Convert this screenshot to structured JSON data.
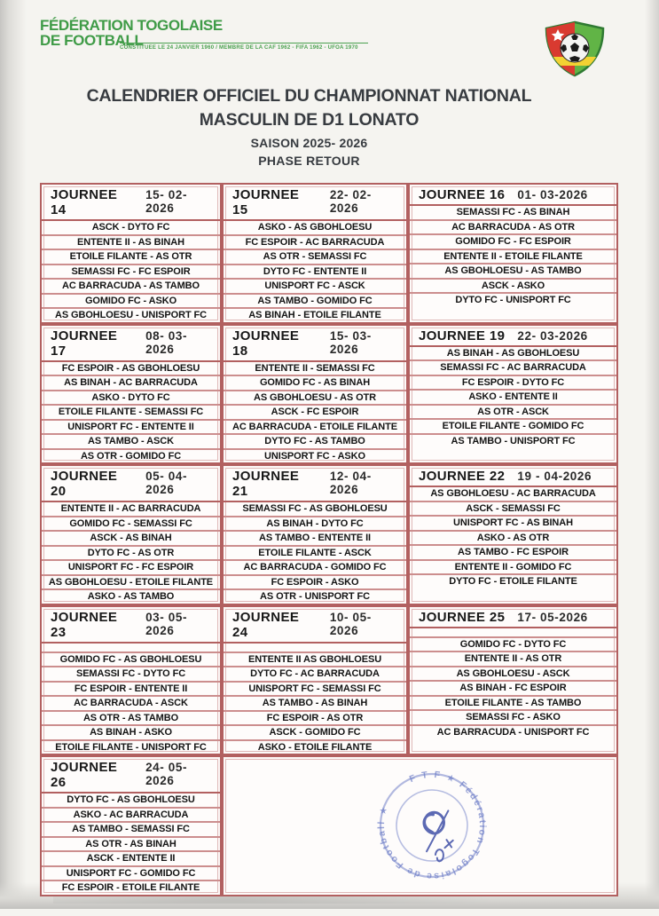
{
  "letterhead": {
    "org_line1": "FÉDÉRATION TOGOLAISE",
    "org_line2": "DE FOOTBALL",
    "org_subtitle": "CONSTITUEE LE 24 JANVIER 1960 / MEMBRE DE LA CAF 1962 - FIFA 1962 - UFOA 1970"
  },
  "title": {
    "line1": "CALENDRIER OFFICIEL DU CHAMPIONNAT NATIONAL",
    "line2": "MASCULIN DE D1 LONATO",
    "line3": "SAISON 2025- 2026",
    "line4": "PHASE RETOUR"
  },
  "rounds": [
    {
      "name": "JOURNEE 14",
      "date": "15- 02-2026",
      "header_gap": false,
      "matches": [
        "ASCK - DYTO FC",
        "ENTENTE II - AS BINAH",
        "ETOILE FILANTE - AS OTR",
        "SEMASSI FC - FC ESPOIR",
        "AC BARRACUDA - AS TAMBO",
        "GOMIDO FC - ASKO",
        "AS GBOHLOESU - UNISPORT FC"
      ]
    },
    {
      "name": "JOURNEE 15",
      "date": "22- 02-2026",
      "header_gap": false,
      "matches": [
        "ASKO - AS GBOHLOESU",
        "FC ESPOIR - AC BARRACUDA",
        "AS OTR - SEMASSI FC",
        "DYTO FC - ENTENTE II",
        "UNISPORT FC - ASCK",
        "AS TAMBO - GOMIDO FC",
        "AS BINAH - ETOILE FILANTE"
      ]
    },
    {
      "name": "JOURNEE 16",
      "date": "01- 03-2026",
      "header_gap": false,
      "matches": [
        "SEMASSI FC - AS BINAH",
        "AC BARRACUDA - AS OTR",
        "GOMIDO FC - FC ESPOIR",
        "ENTENTE II - ETOILE FILANTE",
        "AS GBOHLOESU - AS TAMBO",
        "ASCK - ASKO",
        "DYTO FC - UNISPORT FC"
      ]
    },
    {
      "name": "JOURNEE 17",
      "date": "08- 03-2026",
      "header_gap": false,
      "matches": [
        "FC ESPOIR - AS GBOHLOESU",
        "AS BINAH - AC BARRACUDA",
        "ASKO - DYTO FC",
        "ETOILE FILANTE - SEMASSI FC",
        "UNISPORT FC - ENTENTE II",
        "AS TAMBO - ASCK",
        "AS OTR - GOMIDO FC"
      ]
    },
    {
      "name": "JOURNEE 18",
      "date": "15- 03-2026",
      "header_gap": false,
      "matches": [
        "ENTENTE II - SEMASSI FC",
        "GOMIDO FC - AS BINAH",
        "AS GBOHLOESU - AS OTR",
        "ASCK - FC ESPOIR",
        "AC BARRACUDA - ETOILE FILANTE",
        "DYTO FC - AS TAMBO",
        "UNISPORT FC - ASKO"
      ]
    },
    {
      "name": "JOURNEE 19",
      "date": "22- 03-2026",
      "header_gap": false,
      "matches": [
        "AS BINAH - AS GBOHLOESU",
        "SEMASSI FC - AC BARRACUDA",
        "FC ESPOIR - DYTO FC",
        "ASKO - ENTENTE II",
        "AS OTR - ASCK",
        "ETOILE FILANTE - GOMIDO FC",
        "AS TAMBO - UNISPORT FC"
      ]
    },
    {
      "name": "JOURNEE 20",
      "date": "05- 04-2026",
      "header_gap": false,
      "matches": [
        "ENTENTE II - AC BARRACUDA",
        "GOMIDO FC - SEMASSI FC",
        "ASCK - AS BINAH",
        "DYTO FC - AS OTR",
        "UNISPORT FC - FC ESPOIR",
        "AS GBOHLOESU - ETOILE FILANTE",
        "ASKO - AS TAMBO"
      ]
    },
    {
      "name": "JOURNEE 21",
      "date": "12- 04-2026",
      "header_gap": false,
      "matches": [
        "SEMASSI FC - AS GBOHLOESU",
        "AS BINAH - DYTO FC",
        "AS TAMBO - ENTENTE II",
        "ETOILE FILANTE - ASCK",
        "AC BARRACUDA - GOMIDO FC",
        "FC ESPOIR - ASKO",
        "AS OTR - UNISPORT FC"
      ]
    },
    {
      "name": "JOURNEE 22",
      "date": "19 - 04-2026",
      "header_gap": false,
      "matches": [
        "AS GBOHLOESU - AC BARRACUDA",
        "ASCK - SEMASSI FC",
        "UNISPORT FC - AS BINAH",
        "ASKO - AS OTR",
        "AS TAMBO - FC ESPOIR",
        "ENTENTE II - GOMIDO FC",
        "DYTO FC - ETOILE FILANTE"
      ]
    },
    {
      "name": "JOURNEE 23",
      "date": "03- 05-2026",
      "header_gap": true,
      "matches": [
        "GOMIDO FC - AS GBOHLOESU",
        "SEMASSI FC - DYTO FC",
        "FC ESPOIR - ENTENTE II",
        "AC BARRACUDA - ASCK",
        "AS OTR - AS TAMBO",
        "AS BINAH - ASKO",
        "ETOILE FILANTE - UNISPORT FC"
      ]
    },
    {
      "name": "JOURNEE 24",
      "date": "10- 05-2026",
      "header_gap": true,
      "matches": [
        "ENTENTE II AS GBOHLOESU",
        "DYTO FC - AC BARRACUDA",
        "UNISPORT FC - SEMASSI FC",
        "AS TAMBO - AS BINAH",
        "FC ESPOIR - AS OTR",
        "ASCK - GOMIDO FC",
        "ASKO - ETOILE FILANTE"
      ]
    },
    {
      "name": "JOURNEE 25",
      "date": "17- 05-2026",
      "header_gap": true,
      "matches": [
        "GOMIDO FC - DYTO FC",
        "ENTENTE II - AS OTR",
        "AS GBOHLOESU - ASCK",
        "AS BINAH - FC ESPOIR",
        "ETOILE FILANTE - AS TAMBO",
        "SEMASSI FC - ASKO",
        "AC BARRACUDA - UNISPORT FC"
      ]
    },
    {
      "name": "JOURNEE 26",
      "date": "24- 05-2026",
      "header_gap": false,
      "matches": [
        "DYTO FC - AS GBOHLOESU",
        "ASKO - AC BARRACUDA",
        "AS TAMBO - SEMASSI FC",
        "AS OTR - AS BINAH",
        "ASCK - ENTENTE II",
        "UNISPORT FC - GOMIDO FC",
        "FC ESPOIR - ETOILE FILANTE"
      ]
    }
  ],
  "stamp": {
    "ring_text": "F T F ★ Fédération Togolaise de Football ★",
    "color": "#5a6cc0"
  },
  "colors": {
    "federation_green": "#3f9b47",
    "table_border_red": "#b26060",
    "row_line_red": "#cc8e8e",
    "title_charcoal": "#373b40",
    "stamp_blue": "#5a6cc0",
    "crest_red": "#d93a30",
    "crest_green": "#61b446",
    "crest_yellow": "#f2d233"
  }
}
